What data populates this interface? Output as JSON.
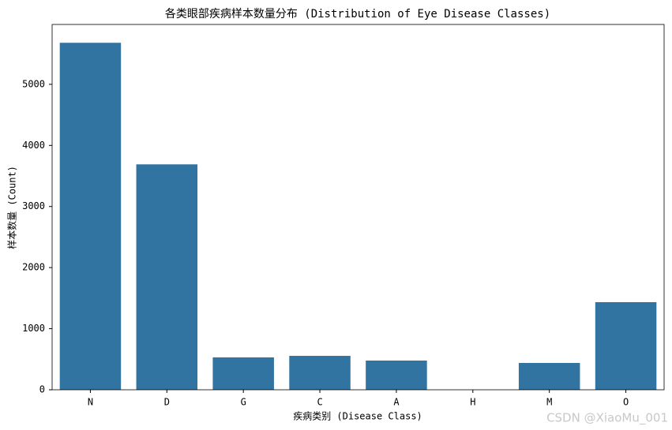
{
  "chart_data": {
    "type": "bar",
    "title": "各类眼部疾病样本数量分布 (Distribution of Eye Disease Classes)",
    "x_label": "疾病类别 (Disease Class)",
    "y_label": "样本数量 (Count)",
    "categories": [
      "N",
      "D",
      "G",
      "C",
      "A",
      "H",
      "M",
      "O"
    ],
    "values": [
      5680,
      3690,
      530,
      555,
      478,
      0,
      439,
      1434
    ],
    "color": "#3274a1",
    "ylim": [
      0,
      5980
    ],
    "yticks": [
      0,
      1000,
      2000,
      3000,
      4000,
      5000
    ],
    "grid": false
  },
  "watermark": "CSDN @XiaoMu_001"
}
